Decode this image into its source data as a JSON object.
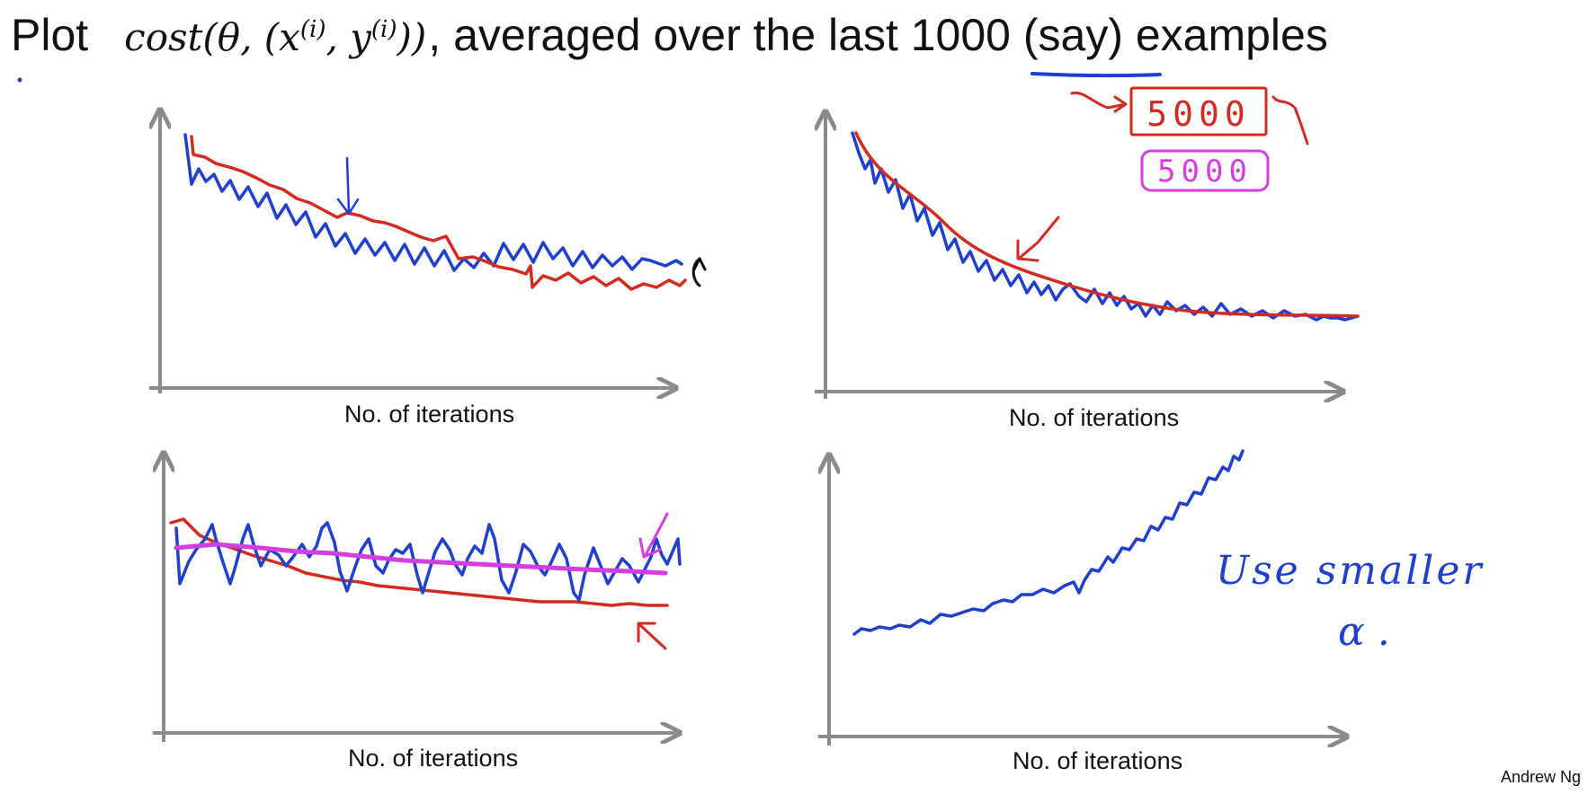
{
  "title": {
    "plot_word": "Plot",
    "formula": {
      "prefix": "cost(θ, (x",
      "sup1": "(i)",
      "mid": ", y",
      "sup2": "(i)",
      "suffix": "))"
    },
    "caption_before": ", averaged over the last ",
    "highlight": "1000",
    "caption_after": " (say) examples"
  },
  "panels": [
    {
      "xlabel": "No. of iterations"
    },
    {
      "xlabel": "No. of iterations"
    },
    {
      "xlabel": "No. of iterations"
    },
    {
      "xlabel": "No. of iterations"
    }
  ],
  "annotations": {
    "boxed_number_red": "5000",
    "boxed_number_magenta": "5000",
    "note_line1": "Use smaller",
    "note_line2": "α ."
  },
  "author": "Andrew Ng",
  "colors": {
    "blue": "#1f3fcf",
    "red": "#d42a1f",
    "magenta": "#d43de0",
    "axis": "#8a8a8a",
    "ink": "#111111"
  }
}
